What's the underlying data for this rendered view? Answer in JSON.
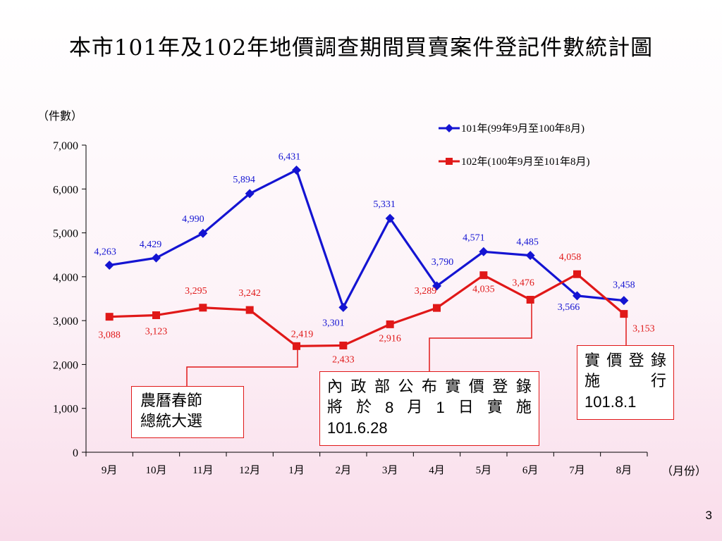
{
  "title": "本市101年及102年地價調查期間買賣案件登記件數統計圖",
  "page_number": "3",
  "callouts": {
    "festival": {
      "line1": "農曆春節",
      "line2": "總統大選"
    },
    "ministry": {
      "line1": "內政部公布實價登錄",
      "line2": "將於8月1日實施",
      "line3": "101.6.28"
    },
    "enforce": {
      "line1": "實價登錄",
      "line2": "施行",
      "line3": "101.8.1"
    }
  },
  "chart_data": {
    "type": "line",
    "ylabel": "（件數）",
    "xlabel": "（月份）",
    "categories": [
      "9月",
      "10月",
      "11月",
      "12月",
      "1月",
      "2月",
      "3月",
      "4月",
      "5月",
      "6月",
      "7月",
      "8月"
    ],
    "ylim": [
      0,
      7000
    ],
    "yticks": [
      0,
      1000,
      2000,
      3000,
      4000,
      5000,
      6000,
      7000
    ],
    "ytick_labels": [
      "0",
      "1,000",
      "2,000",
      "3,000",
      "4,000",
      "5,000",
      "6,000",
      "7,000"
    ],
    "grid": false,
    "legend_position": "top-right",
    "series": [
      {
        "name": "101年(99年9月至100年8月)",
        "color": "#1414d2",
        "marker": "diamond",
        "values": [
          4263,
          4429,
          4990,
          5894,
          6431,
          3301,
          5331,
          3790,
          4571,
          4485,
          3566,
          3458
        ],
        "labels": [
          "4,263",
          "4,429",
          "4,990",
          "5,894",
          "6,431",
          "3,301",
          "5,331",
          "3,790",
          "4,571",
          "4,485",
          "3,566",
          "3,458"
        ]
      },
      {
        "name": "102年(100年9月至101年8月)",
        "color": "#e01818",
        "marker": "square",
        "values": [
          3088,
          3123,
          3295,
          3242,
          2419,
          2433,
          2916,
          3289,
          4035,
          3476,
          4058,
          3153
        ],
        "labels": [
          "3,088",
          "3,123",
          "3,295",
          "3,242",
          "2,419",
          "2,433",
          "2,916",
          "3,289",
          "4,035",
          "3,476",
          "4,058",
          "3,153"
        ]
      }
    ]
  }
}
